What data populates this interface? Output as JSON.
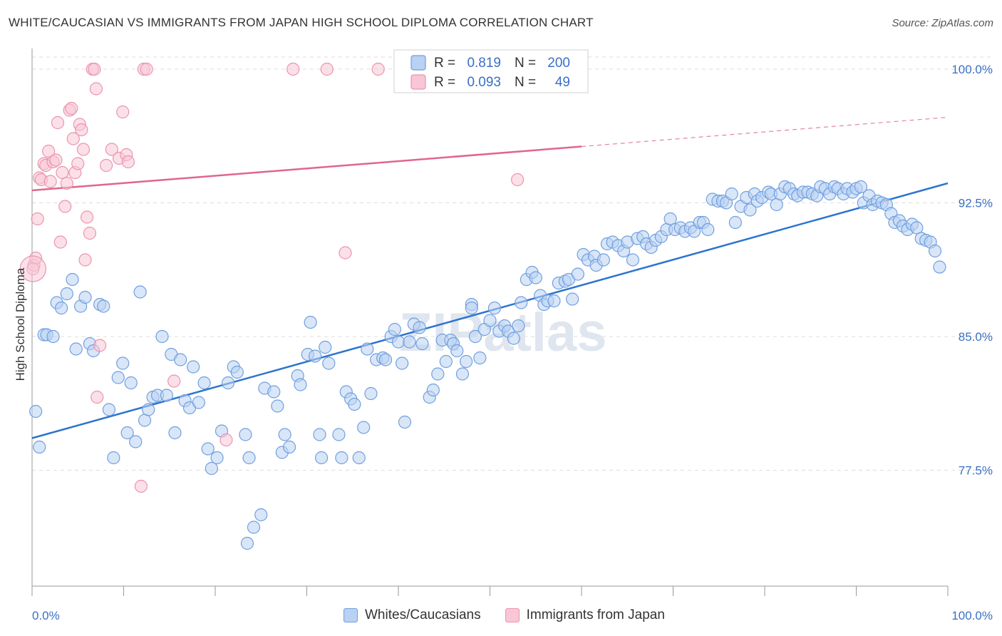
{
  "header": {
    "title": "WHITE/CAUCASIAN VS IMMIGRANTS FROM JAPAN HIGH SCHOOL DIPLOMA CORRELATION CHART",
    "source": "Source: ZipAtlas.com"
  },
  "watermark": "ZIPatlas",
  "colors": {
    "blue_fill": "#b9d1f3",
    "blue_stroke": "#6f9fdf",
    "blue_line": "#2d74d0",
    "pink_fill": "#f8c6d5",
    "pink_stroke": "#ec93ae",
    "pink_line": "#e0668e",
    "tick_label": "#3a6fc6",
    "grid": "#dddddd"
  },
  "stats_legend": [
    {
      "series": "Whites/Caucasians",
      "r_label": "R =",
      "r_value": "0.819",
      "n_label": "N =",
      "n_value": "200"
    },
    {
      "series": "Immigrants from Japan",
      "r_label": "R =",
      "r_value": "0.093",
      "n_label": "N =",
      "n_value": "49"
    }
  ],
  "chart_data": {
    "type": "scatter",
    "title": "WHITE/CAUCASIAN VS IMMIGRANTS FROM JAPAN HIGH SCHOOL DIPLOMA CORRELATION CHART",
    "xlabel": "",
    "ylabel": "High School Diploma",
    "xlim": [
      0,
      100
    ],
    "ylim": [
      71.0,
      101.0
    ],
    "x_tick_labels": [
      "0.0%",
      "100.0%"
    ],
    "y_ticks": [
      77.5,
      85.0,
      92.5,
      100.0
    ],
    "y_tick_labels": [
      "77.5%",
      "85.0%",
      "92.5%",
      "100.0%"
    ],
    "grid": true,
    "legend": "bottom-center",
    "series": [
      {
        "name": "Whites/Caucasians",
        "trend": {
          "x": [
            0,
            100
          ],
          "y": [
            79.3,
            93.6
          ],
          "dashed_from": null
        },
        "points": [
          [
            0.4,
            80.8
          ],
          [
            0.8,
            78.8
          ],
          [
            1.3,
            85.1
          ],
          [
            1.6,
            85.1
          ],
          [
            2.3,
            85.0
          ],
          [
            2.7,
            86.9
          ],
          [
            3.2,
            86.6
          ],
          [
            3.8,
            87.4
          ],
          [
            4.4,
            88.2
          ],
          [
            4.8,
            84.3
          ],
          [
            5.3,
            86.7
          ],
          [
            5.8,
            87.2
          ],
          [
            6.3,
            84.6
          ],
          [
            6.7,
            84.2
          ],
          [
            7.4,
            86.8
          ],
          [
            7.8,
            86.7
          ],
          [
            8.4,
            80.9
          ],
          [
            8.9,
            78.2
          ],
          [
            9.4,
            82.7
          ],
          [
            9.9,
            83.5
          ],
          [
            10.4,
            79.6
          ],
          [
            10.8,
            82.4
          ],
          [
            11.3,
            79.1
          ],
          [
            11.8,
            87.5
          ],
          [
            12.3,
            80.3
          ],
          [
            12.7,
            80.9
          ],
          [
            13.2,
            81.6
          ],
          [
            13.7,
            81.7
          ],
          [
            14.2,
            85.0
          ],
          [
            14.7,
            81.7
          ],
          [
            15.2,
            84.0
          ],
          [
            15.6,
            79.6
          ],
          [
            16.2,
            83.7
          ],
          [
            16.7,
            81.4
          ],
          [
            17.2,
            81.0
          ],
          [
            17.6,
            83.3
          ],
          [
            18.2,
            81.3
          ],
          [
            18.8,
            82.4
          ],
          [
            19.2,
            78.7
          ],
          [
            19.6,
            77.6
          ],
          [
            20.2,
            78.2
          ],
          [
            20.7,
            79.7
          ],
          [
            21.4,
            82.4
          ],
          [
            22.0,
            83.3
          ],
          [
            22.4,
            83.0
          ],
          [
            23.3,
            79.5
          ],
          [
            23.7,
            78.2
          ],
          [
            23.5,
            73.4
          ],
          [
            24.2,
            74.3
          ],
          [
            25.0,
            75.0
          ],
          [
            25.4,
            82.1
          ],
          [
            26.4,
            81.9
          ],
          [
            26.8,
            81.1
          ],
          [
            27.3,
            78.5
          ],
          [
            27.6,
            79.5
          ],
          [
            28.1,
            78.8
          ],
          [
            29.0,
            82.8
          ],
          [
            29.3,
            82.3
          ],
          [
            30.1,
            84.0
          ],
          [
            30.4,
            85.8
          ],
          [
            30.9,
            83.9
          ],
          [
            31.4,
            79.5
          ],
          [
            31.6,
            78.2
          ],
          [
            32.0,
            84.4
          ],
          [
            32.4,
            83.5
          ],
          [
            33.5,
            79.5
          ],
          [
            33.8,
            78.2
          ],
          [
            34.3,
            81.9
          ],
          [
            34.8,
            81.5
          ],
          [
            35.2,
            81.2
          ],
          [
            35.7,
            78.2
          ],
          [
            36.2,
            79.9
          ],
          [
            36.6,
            84.3
          ],
          [
            37.0,
            81.8
          ],
          [
            37.6,
            83.7
          ],
          [
            38.3,
            83.8
          ],
          [
            38.6,
            83.7
          ],
          [
            39.2,
            85.0
          ],
          [
            39.6,
            85.4
          ],
          [
            40.0,
            84.7
          ],
          [
            40.4,
            83.5
          ],
          [
            40.7,
            80.2
          ],
          [
            41.2,
            84.7
          ],
          [
            41.7,
            85.7
          ],
          [
            42.3,
            85.5
          ],
          [
            42.6,
            84.6
          ],
          [
            43.4,
            81.6
          ],
          [
            43.8,
            82.0
          ],
          [
            44.3,
            82.9
          ],
          [
            44.8,
            84.8
          ],
          [
            45.2,
            83.6
          ],
          [
            45.7,
            84.8
          ],
          [
            46.0,
            84.6
          ],
          [
            46.4,
            84.2
          ],
          [
            47.0,
            82.9
          ],
          [
            47.4,
            83.6
          ],
          [
            48.0,
            86.8
          ],
          [
            48.4,
            85.0
          ],
          [
            48.9,
            83.8
          ],
          [
            49.4,
            85.4
          ],
          [
            50.0,
            85.9
          ],
          [
            50.5,
            86.6
          ],
          [
            51.0,
            85.3
          ],
          [
            51.6,
            85.6
          ],
          [
            52.0,
            85.3
          ],
          [
            52.6,
            84.9
          ],
          [
            53.1,
            85.6
          ],
          [
            53.4,
            86.9
          ],
          [
            54.0,
            88.2
          ],
          [
            54.6,
            88.6
          ],
          [
            55.0,
            88.3
          ],
          [
            55.5,
            87.3
          ],
          [
            55.9,
            86.8
          ],
          [
            56.3,
            87.0
          ],
          [
            57.0,
            87.0
          ],
          [
            57.5,
            88.0
          ],
          [
            58.2,
            88.1
          ],
          [
            58.6,
            88.2
          ],
          [
            59.0,
            87.1
          ],
          [
            59.6,
            88.5
          ],
          [
            60.2,
            89.6
          ],
          [
            60.7,
            89.3
          ],
          [
            61.4,
            89.5
          ],
          [
            61.6,
            89.0
          ],
          [
            62.4,
            89.3
          ],
          [
            62.8,
            90.2
          ],
          [
            63.4,
            90.3
          ],
          [
            64.0,
            90.1
          ],
          [
            64.6,
            89.8
          ],
          [
            65.0,
            90.3
          ],
          [
            65.6,
            89.3
          ],
          [
            66.1,
            90.5
          ],
          [
            66.7,
            90.6
          ],
          [
            67.1,
            90.2
          ],
          [
            67.6,
            90.0
          ],
          [
            68.1,
            90.4
          ],
          [
            68.7,
            90.6
          ],
          [
            69.3,
            91.0
          ],
          [
            69.7,
            91.6
          ],
          [
            70.2,
            91.0
          ],
          [
            70.8,
            91.1
          ],
          [
            71.3,
            90.9
          ],
          [
            71.9,
            91.1
          ],
          [
            72.3,
            90.9
          ],
          [
            72.9,
            91.4
          ],
          [
            73.3,
            91.4
          ],
          [
            73.8,
            91.0
          ],
          [
            74.3,
            92.7
          ],
          [
            74.9,
            92.6
          ],
          [
            75.4,
            92.6
          ],
          [
            75.8,
            92.5
          ],
          [
            76.4,
            93.0
          ],
          [
            76.8,
            91.4
          ],
          [
            77.4,
            92.3
          ],
          [
            78.0,
            92.8
          ],
          [
            78.4,
            92.1
          ],
          [
            78.9,
            93.0
          ],
          [
            79.2,
            92.6
          ],
          [
            79.7,
            92.8
          ],
          [
            80.4,
            93.1
          ],
          [
            80.7,
            93.0
          ],
          [
            81.3,
            92.4
          ],
          [
            81.7,
            93.0
          ],
          [
            82.2,
            93.4
          ],
          [
            82.7,
            93.3
          ],
          [
            83.2,
            93.0
          ],
          [
            83.6,
            92.9
          ],
          [
            84.2,
            93.1
          ],
          [
            84.7,
            93.1
          ],
          [
            85.2,
            93.0
          ],
          [
            85.7,
            92.9
          ],
          [
            86.1,
            93.4
          ],
          [
            86.6,
            93.3
          ],
          [
            87.1,
            93.0
          ],
          [
            87.6,
            93.4
          ],
          [
            88.0,
            93.3
          ],
          [
            88.6,
            93.0
          ],
          [
            89.0,
            93.3
          ],
          [
            89.6,
            93.1
          ],
          [
            90.0,
            93.3
          ],
          [
            90.5,
            93.4
          ],
          [
            90.8,
            92.5
          ],
          [
            91.4,
            92.9
          ],
          [
            91.8,
            92.4
          ],
          [
            92.3,
            92.6
          ],
          [
            92.8,
            92.5
          ],
          [
            93.3,
            92.4
          ],
          [
            93.8,
            91.9
          ],
          [
            94.2,
            91.4
          ],
          [
            94.7,
            91.5
          ],
          [
            95.1,
            91.2
          ],
          [
            95.6,
            91.0
          ],
          [
            96.1,
            91.3
          ],
          [
            96.6,
            91.1
          ],
          [
            97.1,
            90.5
          ],
          [
            97.6,
            90.4
          ],
          [
            98.1,
            90.3
          ],
          [
            98.6,
            89.8
          ],
          [
            99.1,
            88.9
          ],
          [
            48.0,
            86.6
          ]
        ]
      },
      {
        "name": "Immigrants from Japan",
        "trend": {
          "x": [
            0,
            100
          ],
          "y": [
            93.2,
            97.3
          ],
          "dashed_from": 60
        },
        "points": [
          [
            0.2,
            89.0
          ],
          [
            0.4,
            89.4
          ],
          [
            0.6,
            91.6
          ],
          [
            0.8,
            93.9
          ],
          [
            1.0,
            93.8
          ],
          [
            1.3,
            94.7
          ],
          [
            1.5,
            94.6
          ],
          [
            1.8,
            95.4
          ],
          [
            2.0,
            93.7
          ],
          [
            2.3,
            94.8
          ],
          [
            2.6,
            94.9
          ],
          [
            2.8,
            97.0
          ],
          [
            3.1,
            90.3
          ],
          [
            3.3,
            94.2
          ],
          [
            3.6,
            92.3
          ],
          [
            3.8,
            93.6
          ],
          [
            4.1,
            97.7
          ],
          [
            4.3,
            97.8
          ],
          [
            4.5,
            96.1
          ],
          [
            4.7,
            94.2
          ],
          [
            5.0,
            94.7
          ],
          [
            5.2,
            96.9
          ],
          [
            5.4,
            96.6
          ],
          [
            5.6,
            95.5
          ],
          [
            5.8,
            89.3
          ],
          [
            6.0,
            91.7
          ],
          [
            6.3,
            90.8
          ],
          [
            6.6,
            100.0
          ],
          [
            6.8,
            100.0
          ],
          [
            7.0,
            98.9
          ],
          [
            7.4,
            84.5
          ],
          [
            7.1,
            81.6
          ],
          [
            8.1,
            94.6
          ],
          [
            8.7,
            95.5
          ],
          [
            9.5,
            95.0
          ],
          [
            9.9,
            97.6
          ],
          [
            10.3,
            95.2
          ],
          [
            10.5,
            94.8
          ],
          [
            12.2,
            100.0
          ],
          [
            12.5,
            100.0
          ],
          [
            11.9,
            76.6
          ],
          [
            15.5,
            82.5
          ],
          [
            21.2,
            79.2
          ],
          [
            28.5,
            100.0
          ],
          [
            32.2,
            100.0
          ],
          [
            34.2,
            89.7
          ],
          [
            37.8,
            100.0
          ],
          [
            53.0,
            93.8
          ],
          [
            0.1,
            88.8
          ]
        ]
      }
    ]
  },
  "bottom_legend": [
    {
      "label": "Whites/Caucasians"
    },
    {
      "label": "Immigrants from Japan"
    }
  ]
}
